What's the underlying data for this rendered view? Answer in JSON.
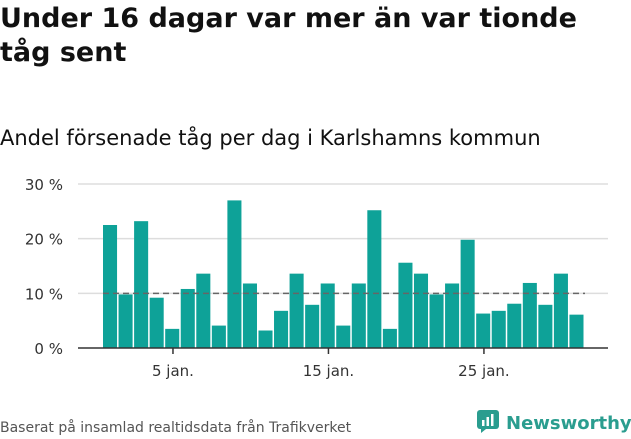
{
  "title": "Under 16 dagar var mer än var tionde tåg sent",
  "subtitle": "Andel försenade tåg per dag i Karlshamns kommun",
  "footer": "Baserat på insamlad realtidsdata från Trafikverket",
  "brand": {
    "name": "Newsworthy",
    "icon": "newsworthy-logo-icon"
  },
  "colors": {
    "bar": "#0ea298",
    "reference_line": "#666666",
    "grid": "#dddddd"
  },
  "chart_data": {
    "type": "bar",
    "x_start_day": 1,
    "x_month_label": "jan.",
    "x_ticks": [
      {
        "day": 5,
        "label": "5 jan."
      },
      {
        "day": 15,
        "label": "15 jan."
      },
      {
        "day": 25,
        "label": "25 jan."
      }
    ],
    "values": [
      22.5,
      9.8,
      23.2,
      9.2,
      3.5,
      10.8,
      13.6,
      4.1,
      27.0,
      11.8,
      3.2,
      6.8,
      13.6,
      7.9,
      11.8,
      4.1,
      11.8,
      25.2,
      3.5,
      15.6,
      13.6,
      9.8,
      11.8,
      19.8,
      6.3,
      6.8,
      8.1,
      11.9,
      7.9,
      13.6,
      6.1
    ],
    "reference_value": 10,
    "ylim": [
      0,
      30
    ],
    "y_ticks": [
      {
        "value": 0,
        "label": "0 %"
      },
      {
        "value": 10,
        "label": "10 %"
      },
      {
        "value": 20,
        "label": "20 %"
      },
      {
        "value": 30,
        "label": "30 %"
      }
    ],
    "grid": true
  }
}
